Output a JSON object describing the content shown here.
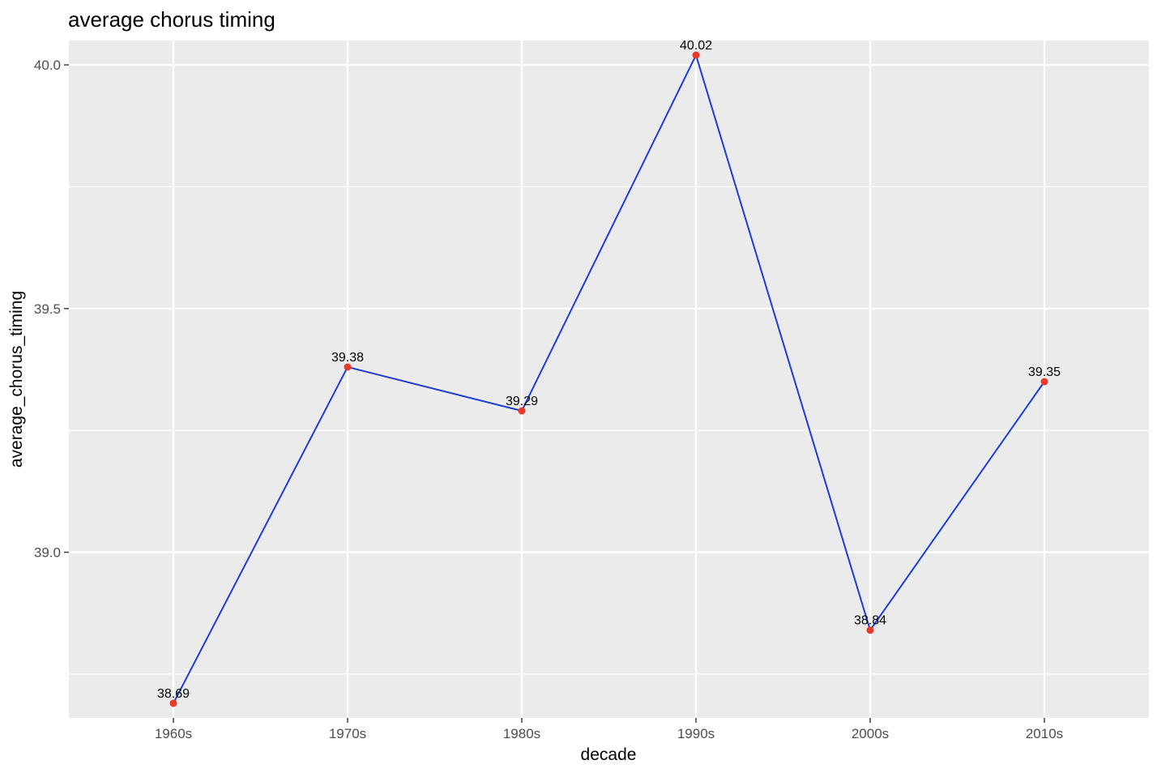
{
  "chart_data": {
    "type": "line",
    "title": "average chorus timing",
    "xlabel": "decade",
    "ylabel": "average_chorus_timing",
    "categories": [
      "1960s",
      "1970s",
      "1980s",
      "1990s",
      "2000s",
      "2010s"
    ],
    "series": [
      {
        "values": [
          38.69,
          39.38,
          39.29,
          40.02,
          38.84,
          39.35
        ],
        "labels": [
          "38.69",
          "39.38",
          "39.29",
          "40.02",
          "38.84",
          "39.35"
        ]
      }
    ],
    "ylim": [
      38.66,
      40.05
    ],
    "yticks": [
      39.0,
      39.5,
      40.0
    ],
    "ytick_labels": [
      "39.0",
      "39.5",
      "40.0"
    ],
    "grid": true,
    "legend": "none",
    "colors": {
      "panel_background": "#ebebeb",
      "grid": "#ffffff",
      "line": "#1f3bd6",
      "point": "#e8392b"
    }
  }
}
